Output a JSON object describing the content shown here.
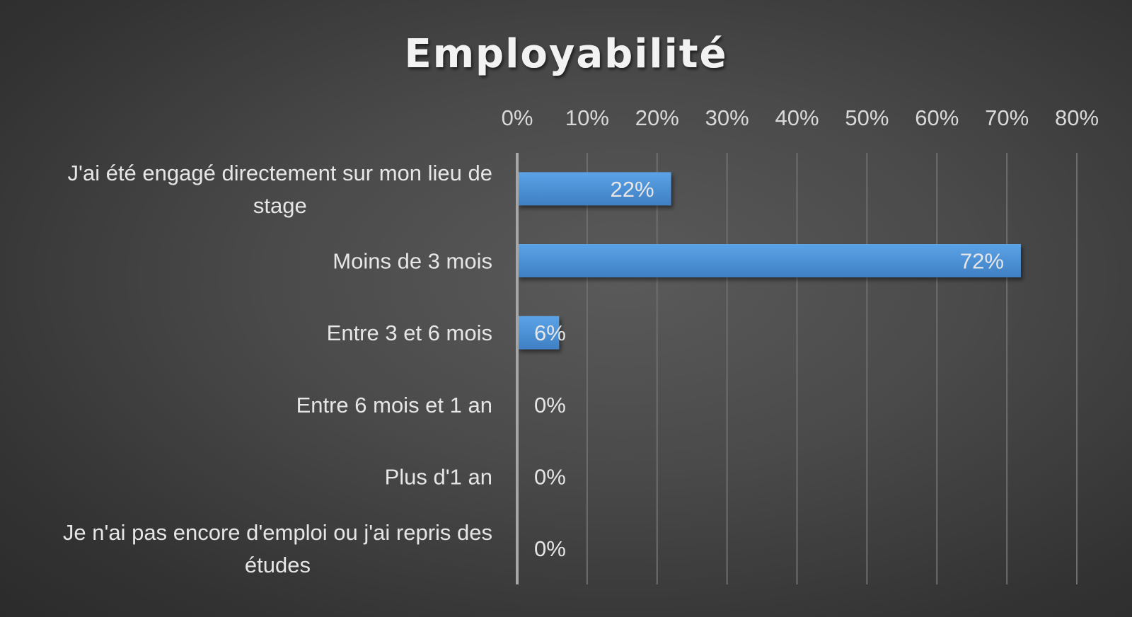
{
  "chart_data": {
    "type": "bar",
    "orientation": "horizontal",
    "title": "Employabilité",
    "categories": [
      [
        "J'ai été engagé directement sur mon lieu de",
        "stage"
      ],
      [
        "Moins de 3 mois"
      ],
      [
        "Entre 3 et 6 mois"
      ],
      [
        "Entre 6 mois et 1 an"
      ],
      [
        "Plus d'1 an"
      ],
      [
        "Je n'ai pas encore d'emploi ou j'ai repris des",
        "études"
      ]
    ],
    "values": [
      22,
      72,
      6,
      0,
      0,
      0
    ],
    "data_labels": [
      "22%",
      "72%",
      "6%",
      "0%",
      "0%",
      "0%"
    ],
    "xlim": [
      0,
      80
    ],
    "x_ticks": [
      0,
      10,
      20,
      30,
      40,
      50,
      60,
      70,
      80
    ],
    "x_tick_labels": [
      "0%",
      "10%",
      "20%",
      "30%",
      "40%",
      "50%",
      "60%",
      "70%",
      "80%"
    ],
    "x_axis_position": "top",
    "grid": true,
    "legend": "none",
    "colors": {
      "bar_top": "#5ba3e6",
      "bar_bottom": "#3f7fc4",
      "text": "#e6e6e6",
      "grid": "#6e6e6e",
      "axis": "#a6a6a6"
    }
  }
}
